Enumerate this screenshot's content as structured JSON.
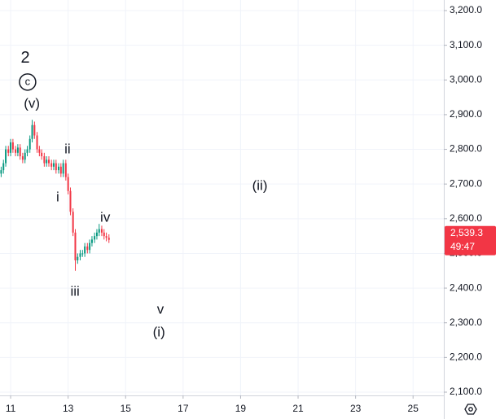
{
  "chart_data": {
    "type": "candlestick",
    "x": [
      10.67,
      10.75,
      10.83,
      10.92,
      11.0,
      11.08,
      11.17,
      11.25,
      11.33,
      11.42,
      11.5,
      11.58,
      11.67,
      11.75,
      11.83,
      11.92,
      12.0,
      12.08,
      12.17,
      12.25,
      12.33,
      12.42,
      12.5,
      12.58,
      12.67,
      12.75,
      12.83,
      12.92,
      13.0,
      13.08,
      13.17,
      13.25,
      13.33,
      13.42,
      13.5,
      13.58,
      13.67,
      13.75,
      13.83,
      13.92,
      14.0,
      14.08,
      14.17,
      14.25,
      14.33,
      14.42
    ],
    "open": [
      2730,
      2740,
      2760,
      2800,
      2790,
      2820,
      2800,
      2790,
      2805,
      2780,
      2770,
      2790,
      2800,
      2830,
      2870,
      2840,
      2800,
      2790,
      2780,
      2760,
      2770,
      2760,
      2750,
      2760,
      2740,
      2750,
      2730,
      2760,
      2720,
      2680,
      2620,
      2560,
      2480,
      2490,
      2500,
      2500,
      2520,
      2510,
      2530,
      2540,
      2550,
      2560,
      2570,
      2560,
      2550,
      2545
    ],
    "high": [
      2750,
      2770,
      2810,
      2810,
      2830,
      2830,
      2810,
      2815,
      2815,
      2790,
      2800,
      2810,
      2840,
      2885,
      2880,
      2850,
      2810,
      2800,
      2790,
      2780,
      2780,
      2770,
      2770,
      2770,
      2760,
      2760,
      2770,
      2770,
      2730,
      2690,
      2630,
      2570,
      2500,
      2510,
      2510,
      2530,
      2530,
      2540,
      2550,
      2560,
      2570,
      2585,
      2580,
      2570,
      2560,
      2555
    ],
    "low": [
      2720,
      2730,
      2750,
      2780,
      2780,
      2790,
      2780,
      2780,
      2770,
      2760,
      2760,
      2780,
      2790,
      2820,
      2830,
      2790,
      2780,
      2770,
      2750,
      2750,
      2750,
      2740,
      2740,
      2730,
      2730,
      2720,
      2720,
      2710,
      2670,
      2610,
      2550,
      2450,
      2470,
      2480,
      2490,
      2490,
      2500,
      2500,
      2520,
      2530,
      2540,
      2550,
      2550,
      2540,
      2535,
      2530
    ],
    "close": [
      2740,
      2760,
      2800,
      2790,
      2820,
      2800,
      2790,
      2805,
      2780,
      2770,
      2790,
      2800,
      2830,
      2870,
      2840,
      2800,
      2790,
      2780,
      2760,
      2770,
      2760,
      2750,
      2760,
      2740,
      2750,
      2730,
      2760,
      2720,
      2680,
      2620,
      2560,
      2480,
      2490,
      2500,
      2500,
      2520,
      2510,
      2530,
      2540,
      2550,
      2560,
      2570,
      2560,
      2550,
      2545,
      2539.3
    ],
    "up_color": "#089981",
    "down_color": "#f23645",
    "xlim": [
      10.63,
      26.07
    ],
    "xticks": [
      11,
      13,
      15,
      17,
      19,
      21,
      23,
      25
    ],
    "ylim": [
      2100,
      3200
    ],
    "yticks": [
      {
        "value": 2100,
        "label": "2,100.0"
      },
      {
        "value": 2200,
        "label": "2,200.0"
      },
      {
        "value": 2300,
        "label": "2,300.0"
      },
      {
        "value": 2400,
        "label": "2,400.0"
      },
      {
        "value": 2500,
        "label": "2,500.0"
      },
      {
        "value": 2600,
        "label": "2,600.0"
      },
      {
        "value": 2700,
        "label": "2,700.0"
      },
      {
        "value": 2800,
        "label": "2,800.0"
      },
      {
        "value": 2900,
        "label": "2,900.0"
      },
      {
        "value": 3000,
        "label": "3,000.0"
      },
      {
        "value": 3100,
        "label": "3,100.0"
      },
      {
        "value": 3200,
        "label": "3,200.0"
      }
    ],
    "grid": true,
    "last_price": {
      "value": 2539.3,
      "label": "2,539.3",
      "countdown": "49:47",
      "color": "#f23645"
    },
    "annotations": [
      {
        "text": "2",
        "x": 11.51,
        "y": 3062,
        "size": 20
      },
      {
        "text": "c",
        "x": 11.59,
        "y": 2994,
        "circled": true
      },
      {
        "text": "(v)",
        "x": 11.74,
        "y": 2930
      },
      {
        "text": "ii",
        "x": 12.98,
        "y": 2799
      },
      {
        "text": "i",
        "x": 12.64,
        "y": 2661
      },
      {
        "text": "iv",
        "x": 14.29,
        "y": 2602
      },
      {
        "text": "iii",
        "x": 13.24,
        "y": 2389
      },
      {
        "text": "v",
        "x": 16.21,
        "y": 2337
      },
      {
        "text": "(i)",
        "x": 16.16,
        "y": 2271
      },
      {
        "text": "(ii)",
        "x": 19.67,
        "y": 2693
      }
    ]
  }
}
